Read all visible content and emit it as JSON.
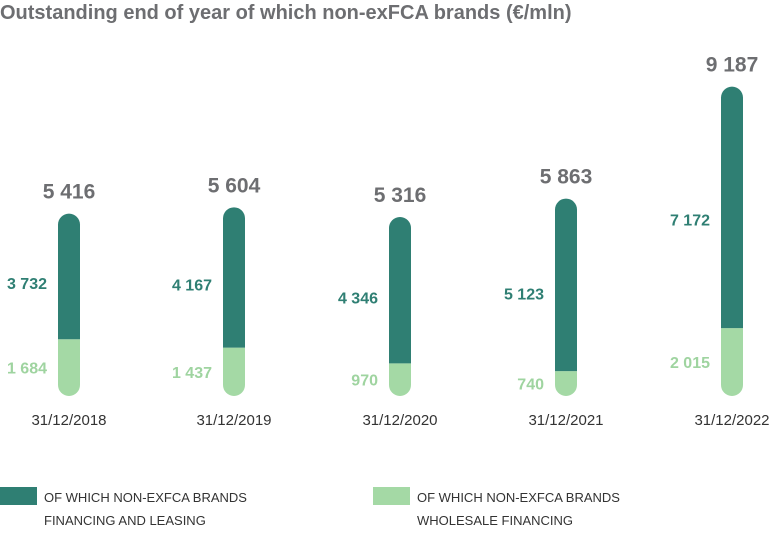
{
  "title": "Outstanding end of year of which non-exFCA brands (€/mln)",
  "colors": {
    "financing": "#2f7f73",
    "wholesale": "#a4d9a5"
  },
  "legend": [
    {
      "line1": "OF WHICH NON-EXFCA BRANDS",
      "line2": "FINANCING AND LEASING",
      "icon": "dark-green-square"
    },
    {
      "line1": "OF WHICH NON-EXFCA BRANDS",
      "line2": "WHOLESALE FINANCING",
      "icon": "light-green-square"
    }
  ],
  "chart_data": {
    "type": "bar",
    "stacked": true,
    "title": "Outstanding end of year of which non-exFCA brands (€/mln)",
    "categories": [
      "31/12/2018",
      "31/12/2019",
      "31/12/2020",
      "31/12/2021",
      "31/12/2022"
    ],
    "series": [
      {
        "name": "OF WHICH NON-EXFCA BRANDS WHOLESALE FINANCING",
        "values": [
          1684,
          1437,
          970,
          740,
          2015
        ],
        "labels": [
          "1 684",
          "1 437",
          "970",
          "740",
          "2 015"
        ]
      },
      {
        "name": "OF WHICH NON-EXFCA BRANDS FINANCING AND LEASING",
        "values": [
          3732,
          4167,
          4346,
          5123,
          7172
        ],
        "labels": [
          "3 732",
          "4 167",
          "4 346",
          "5 123",
          "7 172"
        ]
      }
    ],
    "totals": [
      5416,
      5604,
      5316,
      5863,
      9187
    ],
    "total_labels": [
      "5 416",
      "5 604",
      "5 316",
      "5 863",
      "9 187"
    ],
    "legend_position": "bottom",
    "grid": false
  }
}
